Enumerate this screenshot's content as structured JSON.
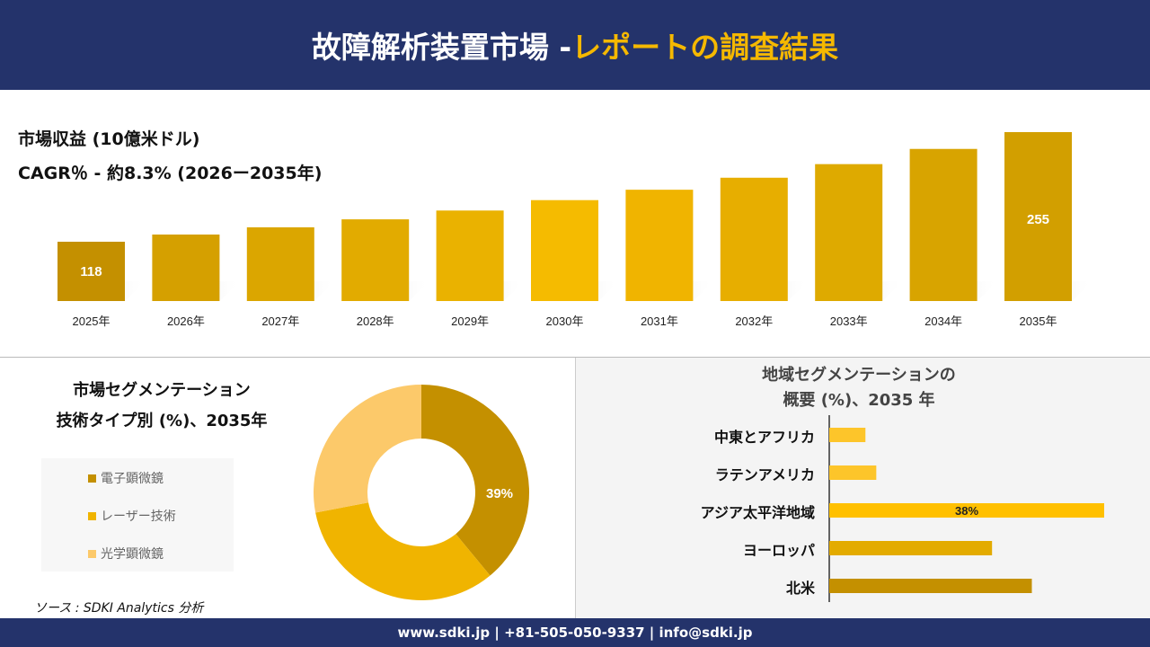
{
  "header": {
    "title_main": "故障解析装置市場 -",
    "title_accent": "レポートの調査結果"
  },
  "colors": {
    "navy": "#24336b",
    "accent": "#f5b800",
    "dark_gold": "#c49000",
    "gold": "#f0b400",
    "light_gold": "#fcc96a"
  },
  "chart_data": [
    {
      "type": "bar",
      "title": "市場収益 (10億米ドル)",
      "subtitle": "CAGR％ - 約8.3% (2026ー2035年)",
      "categories": [
        "2025年",
        "2026年",
        "2027年",
        "2028年",
        "2029年",
        "2030年",
        "2031年",
        "2032年",
        "2033年",
        "2034年",
        "2035年"
      ],
      "values": [
        118,
        127,
        136,
        146,
        157,
        170,
        183,
        198,
        215,
        234,
        255
      ],
      "data_labels": {
        "0": "118",
        "10": "255"
      }
    },
    {
      "type": "pie",
      "title_line1": "市場セグメンテーション",
      "title_line2": "技術タイプ別 (%)、2035年",
      "labels": [
        "電子顕微鏡",
        "レーザー技術",
        "光学顕微鏡"
      ],
      "values": [
        39,
        33,
        28
      ],
      "data_label": "39%",
      "colors": [
        "#c49000",
        "#f0b400",
        "#fcc96a"
      ]
    },
    {
      "type": "bar",
      "orientation": "horizontal",
      "title_line1": "地域セグメンテーションの",
      "title_line2": "概要 (%)、2035 年",
      "categories": [
        "中東とアフリカ",
        "ラテンアメリカ",
        "アジア太平洋地域",
        "ヨーロッパ",
        "北米"
      ],
      "values": [
        5,
        6.5,
        38,
        22.5,
        28
      ],
      "data_label": "38%",
      "colors": [
        "#fdc52a",
        "#fdc52a",
        "#ffc000",
        "#e3ab00",
        "#c49000"
      ]
    }
  ],
  "source": "ソース : SDKI Analytics 分析",
  "footer": "www.sdki.jp | +81-505-050-9337 | info@sdki.jp"
}
